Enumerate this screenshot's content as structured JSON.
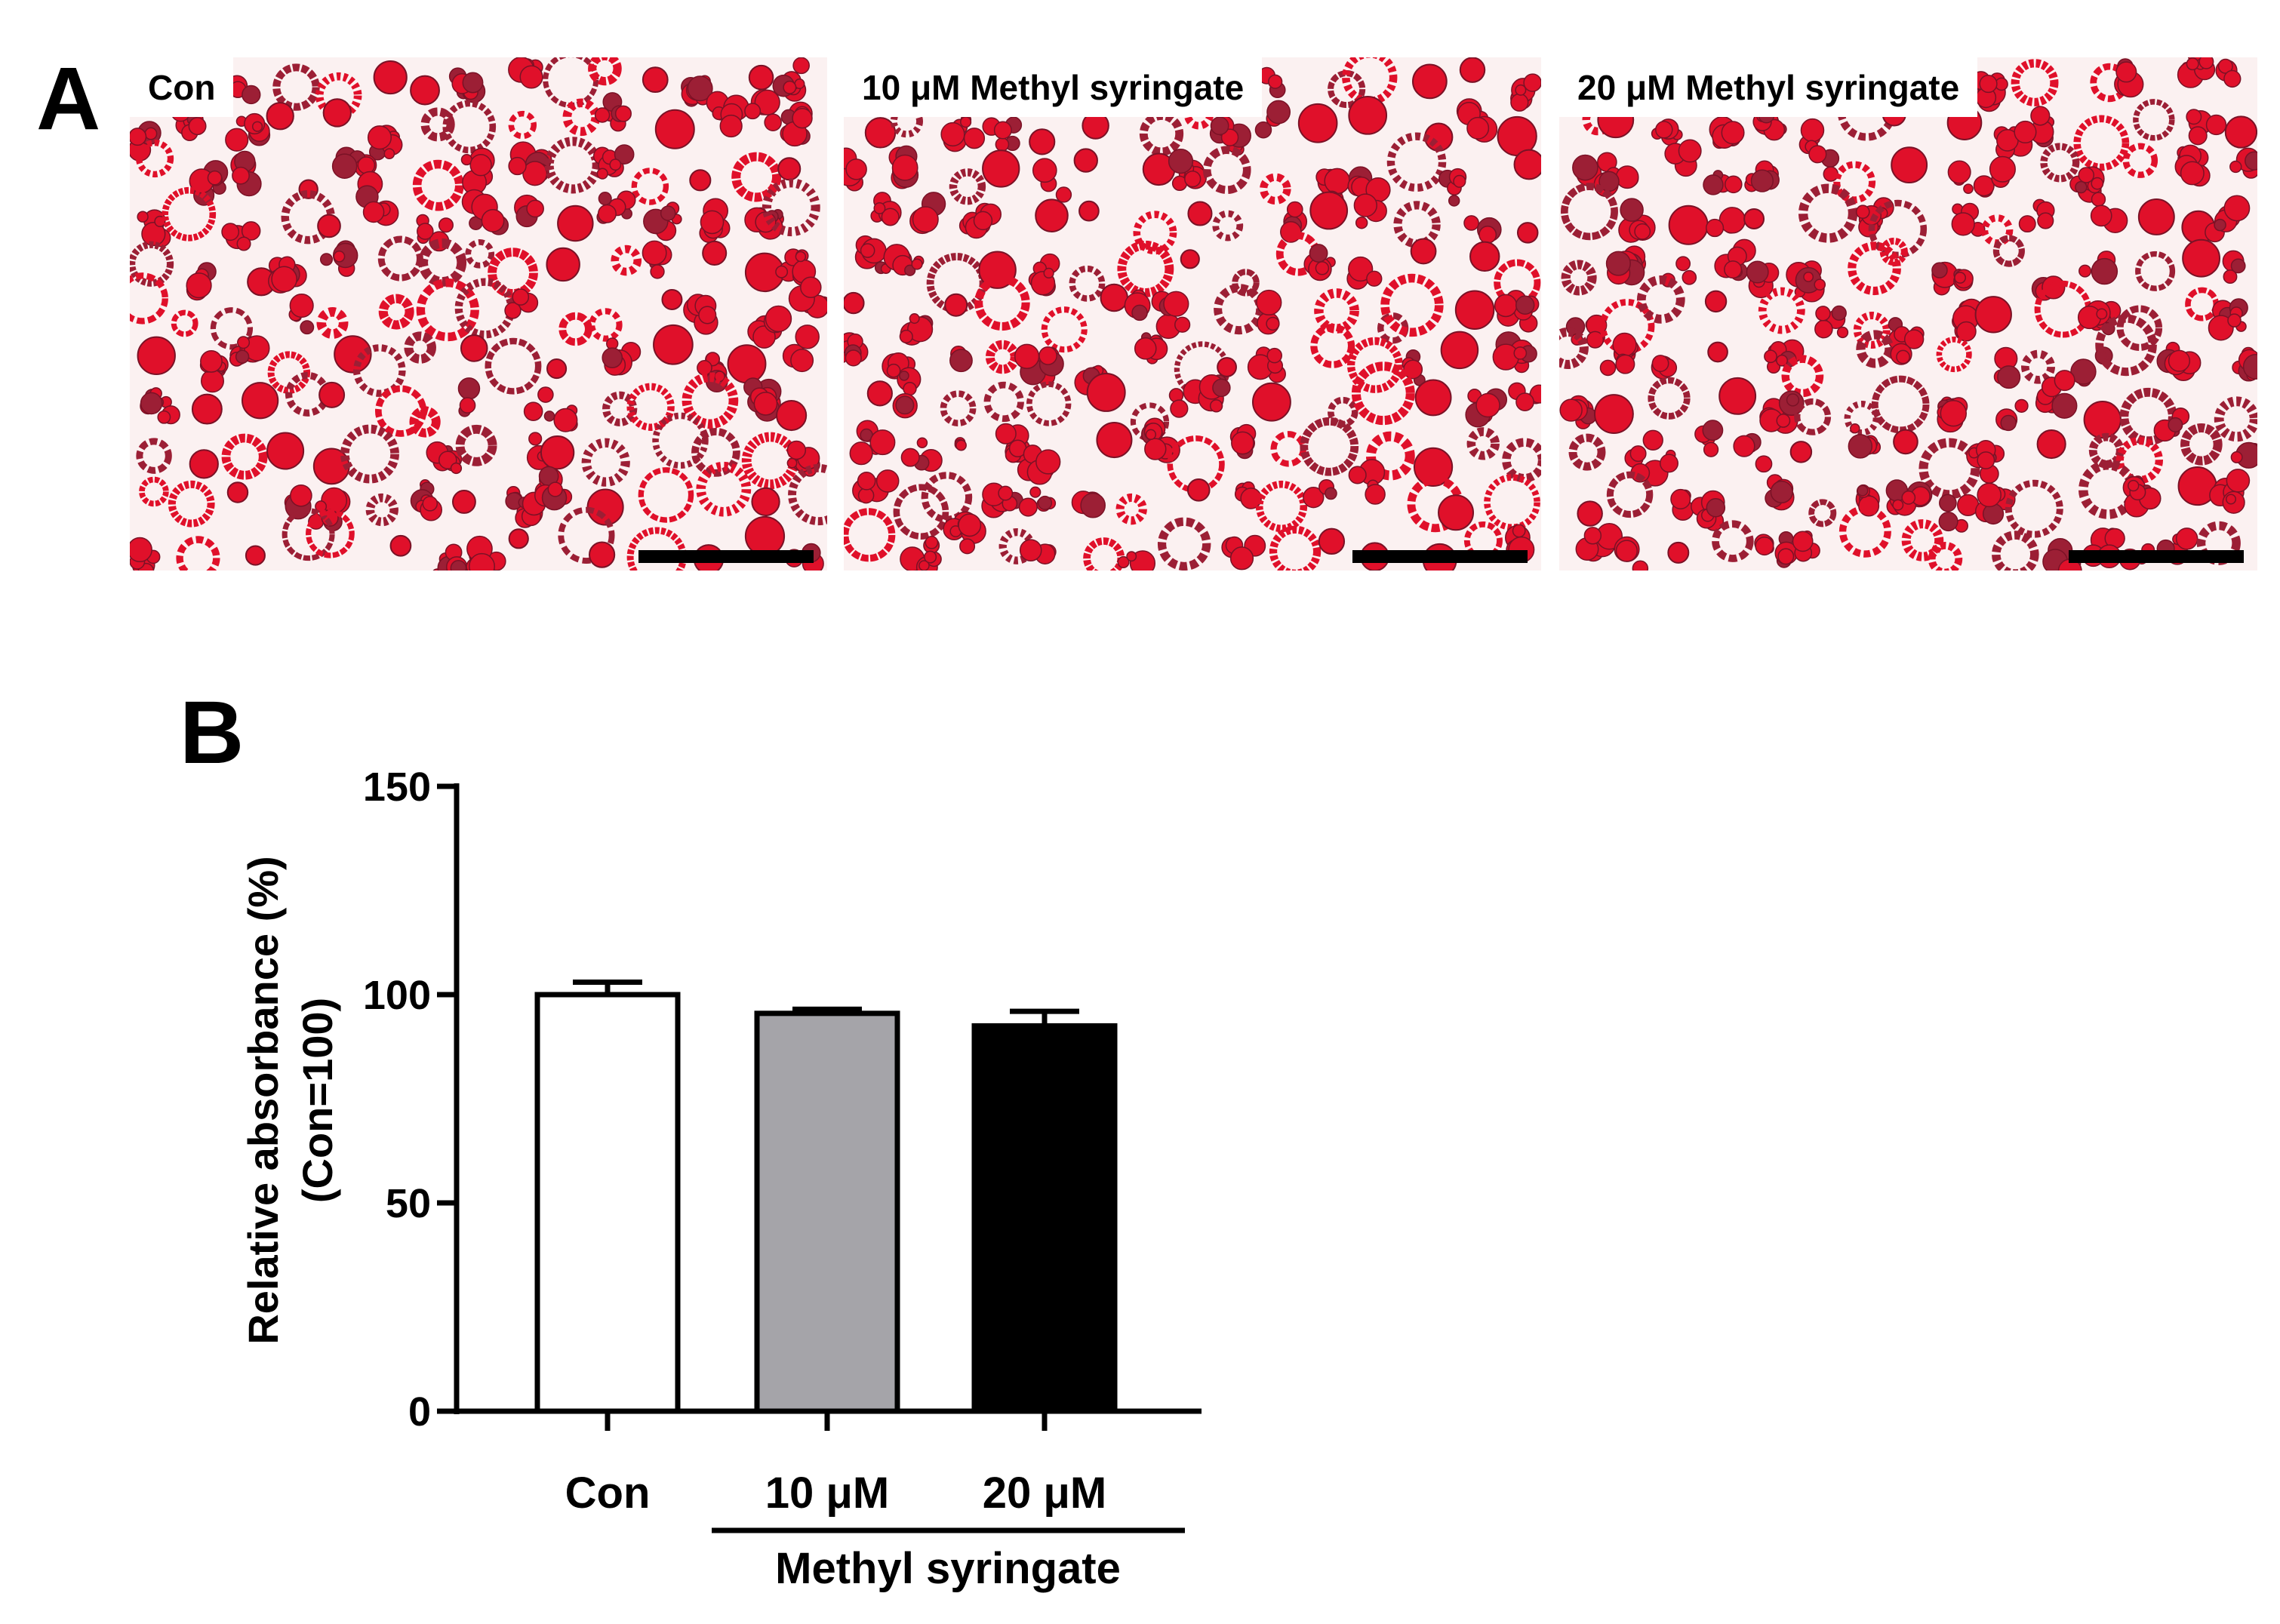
{
  "panel_a": {
    "letter": "A",
    "images": [
      {
        "label": "Con"
      },
      {
        "label": "10 μM Methyl syringate"
      },
      {
        "label": "20 μM Methyl syringate"
      }
    ],
    "stain_colors": {
      "cell_red": "#e0102a",
      "dark_red": "#9c1f35",
      "background": "#fbf1f1"
    }
  },
  "panel_b": {
    "letter": "B"
  },
  "chart_data": {
    "type": "bar",
    "categories": [
      "Con",
      "10 μM",
      "20 μM"
    ],
    "values": [
      100,
      95.5,
      92.5
    ],
    "error": [
      3,
      1,
      3.5
    ],
    "bar_colors": [
      "#ffffff",
      "#a5a4a9",
      "#000000"
    ],
    "ylabel_line1": "Relative absorbance (%)",
    "ylabel_line2": "(Con=100)",
    "ylim": [
      0,
      150
    ],
    "yticks": [
      0,
      50,
      100,
      150
    ],
    "group_label": "Methyl syringate",
    "grid": false,
    "legend": "none"
  }
}
